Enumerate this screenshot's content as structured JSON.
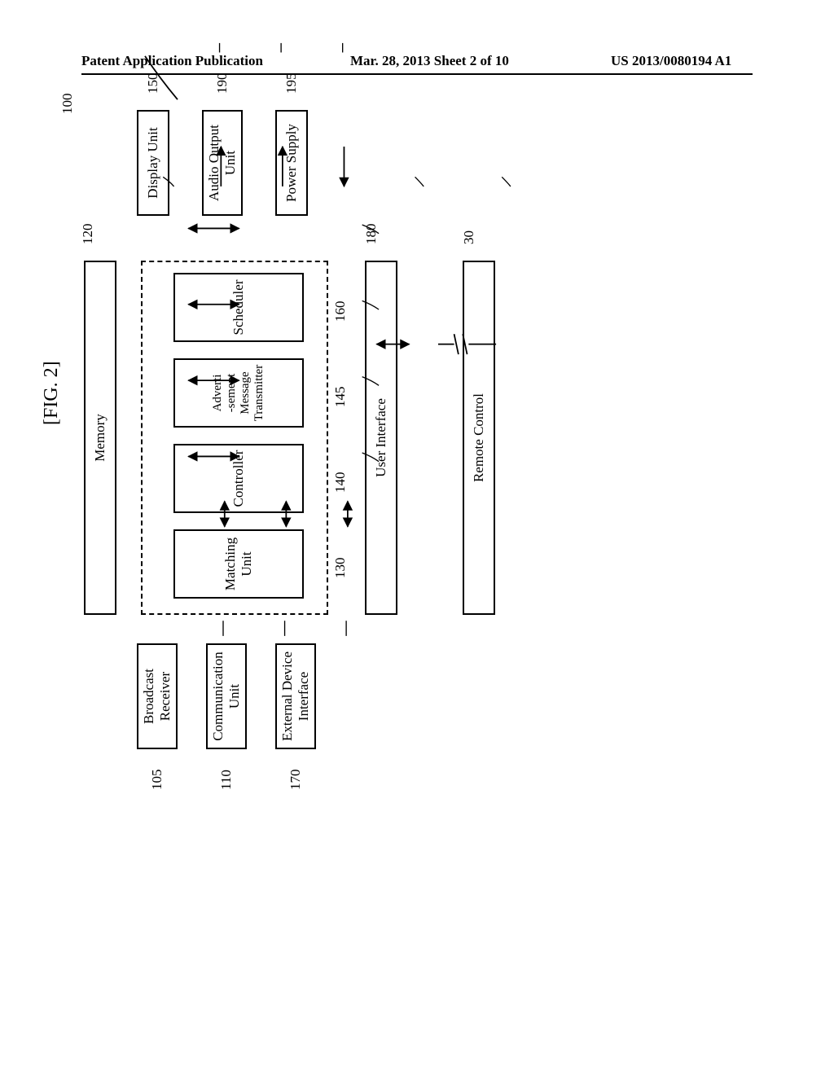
{
  "header": {
    "left_text": "Patent Application Publication",
    "center_text": "Mar. 28, 2013  Sheet 2 of 10",
    "right_text": "US 2013/0080194 A1"
  },
  "figure": {
    "title": "[FIG. 2]",
    "system_ref": "100",
    "blocks": {
      "broadcast_receiver": {
        "label": "Broadcast\nReceiver",
        "ref": "105"
      },
      "communication_unit": {
        "label": "Communication\nUnit",
        "ref": "110"
      },
      "external_device_interface": {
        "label": "External Device\nInterface",
        "ref": "170"
      },
      "memory": {
        "label": "Memory",
        "ref": "120"
      },
      "matching_unit": {
        "label": "Matching\nUnit",
        "ref": "130"
      },
      "controller": {
        "label": "Controller",
        "ref": "140"
      },
      "adverti_transmitter": {
        "label": "Adverti\n-sement\nMessage\nTransmitter",
        "ref": "145"
      },
      "scheduler": {
        "label": "Scheduler",
        "ref": "160"
      },
      "display_unit": {
        "label": "Display Unit",
        "ref": "150"
      },
      "audio_output_unit": {
        "label": "Audio Output\nUnit",
        "ref": "190"
      },
      "power_supply": {
        "label": "Power Supply",
        "ref": "195"
      },
      "user_interface": {
        "label": "User Interface",
        "ref": "180"
      },
      "remote_control": {
        "label": "Remote Control",
        "ref": "30"
      }
    },
    "style": {
      "stroke": "#000000",
      "stroke_width": 2,
      "font_size": 17,
      "dash": "6,5"
    }
  }
}
